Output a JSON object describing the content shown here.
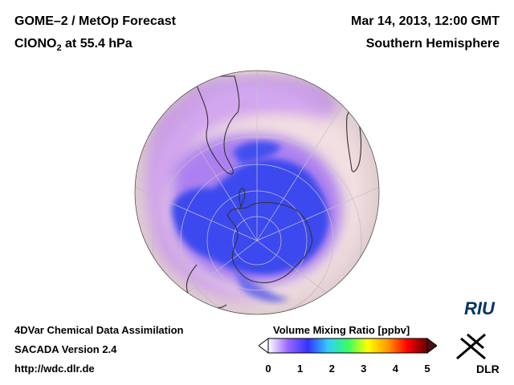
{
  "header": {
    "title_line1": "GOME–2 / MetOp Forecast",
    "title_line2_prefix": "ClONO",
    "title_line2_sub": "2",
    "title_line2_suffix": " at 55.4 hPa",
    "date": "Mar 14, 2013, 12:00 GMT",
    "region": "Southern Hemisphere"
  },
  "footer": {
    "line1": "4DVar Chemical Data Assimilation",
    "line2": "SACADA Version 2.4",
    "line3": "http://wdc.dlr.de"
  },
  "colorbar": {
    "title": "Volume Mixing Ratio [ppbv]",
    "ticks": [
      "0",
      "1",
      "2",
      "3",
      "4",
      "5"
    ],
    "colors": [
      "#ffffff",
      "#9966ff",
      "#3333ff",
      "#33ccff",
      "#33ff66",
      "#ffff00",
      "#ff9900",
      "#ff0000",
      "#660000"
    ]
  },
  "logos": {
    "riu": "RIU",
    "dlr": "DLR"
  },
  "map": {
    "projection": "orthographic south polar",
    "background_color": "#f1dede",
    "low_value_color": "#3848ef"
  }
}
